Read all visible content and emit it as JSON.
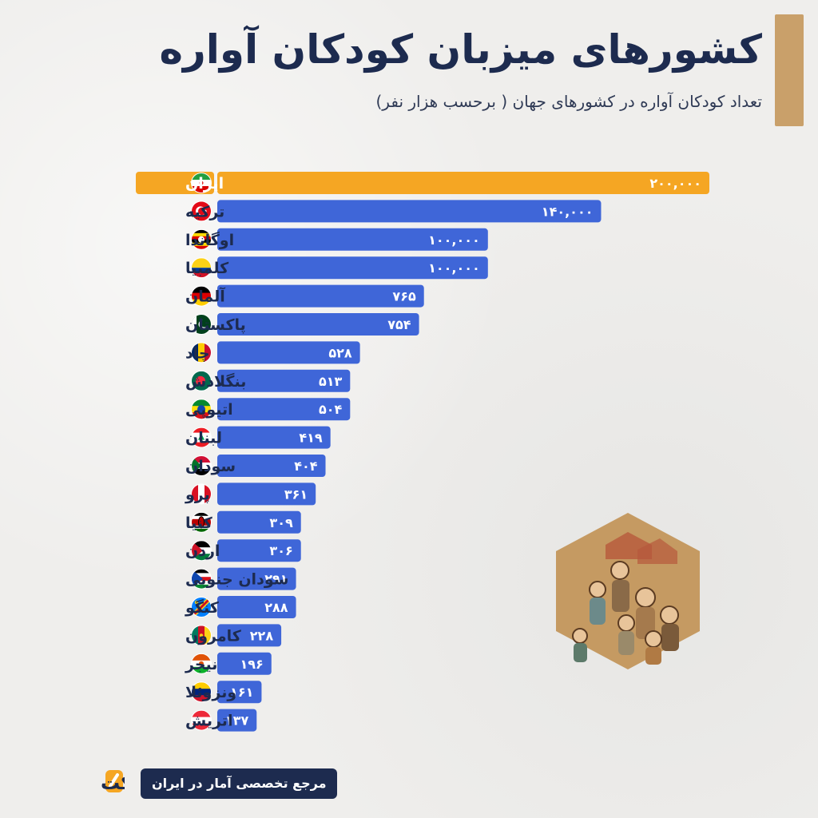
{
  "title": "کشورهای میزبان کودکان آواره",
  "subtitle": "تعداد کودکان آواره در کشورهای جهان ( برحسب هزار نفر)",
  "brand": {
    "name": "آمارفکت",
    "tagline": "مرجع تخصصی آمار در ایران"
  },
  "colors": {
    "highlight": "#f5a623",
    "bar": "#3f66d8",
    "accent": "#c9a06a",
    "text": "#1d2b4f"
  },
  "chart_data": {
    "type": "bar",
    "orientation": "horizontal",
    "categories": [
      "ایران",
      "ترکیه",
      "اوگاندا",
      "کلمبیا",
      "آلمان",
      "پاکستان",
      "چاد",
      "بنگلادش",
      "اتیوپی",
      "لبنان",
      "سودان",
      "پرو",
      "کنیا",
      "اردن",
      "سودان جنوبی",
      "کنگو",
      "کامرون",
      "نیجر",
      "ونزوئلا",
      "اتریش"
    ],
    "values": [
      200000,
      140000,
      100000,
      100000,
      765,
      754,
      528,
      513,
      504,
      419,
      404,
      361,
      309,
      306,
      291,
      288,
      228,
      196,
      161,
      137
    ],
    "value_labels": [
      "۲۰۰,۰۰۰",
      "۱۴۰,۰۰۰",
      "۱۰۰,۰۰۰",
      "۱۰۰,۰۰۰",
      "۷۶۵",
      "۷۵۴",
      "۵۲۸",
      "۵۱۳",
      "۵۰۴",
      "۴۱۹",
      "۴۰۴",
      "۳۶۱",
      "۳۰۹",
      "۳۰۶",
      "۲۹۱",
      "۲۸۸",
      "۲۲۸",
      "۱۹۶",
      "۱۶۱",
      "۱۳۷"
    ],
    "bar_fraction": [
      1.0,
      0.78,
      0.55,
      0.55,
      0.42,
      0.41,
      0.29,
      0.27,
      0.27,
      0.23,
      0.22,
      0.2,
      0.17,
      0.17,
      0.16,
      0.16,
      0.13,
      0.11,
      0.09,
      0.08
    ],
    "highlight_index": 0,
    "flags": [
      "iran-flag",
      "turkey-flag",
      "uganda-flag",
      "colombia-flag",
      "germany-flag",
      "pakistan-flag",
      "chad-flag",
      "bangladesh-flag",
      "ethiopia-flag",
      "lebanon-flag",
      "sudan-flag",
      "peru-flag",
      "kenya-flag",
      "jordan-flag",
      "south-sudan-flag",
      "dr-congo-flag",
      "cameroon-flag",
      "niger-flag",
      "venezuela-flag",
      "austria-flag"
    ],
    "xlabel": "",
    "ylabel": ""
  }
}
